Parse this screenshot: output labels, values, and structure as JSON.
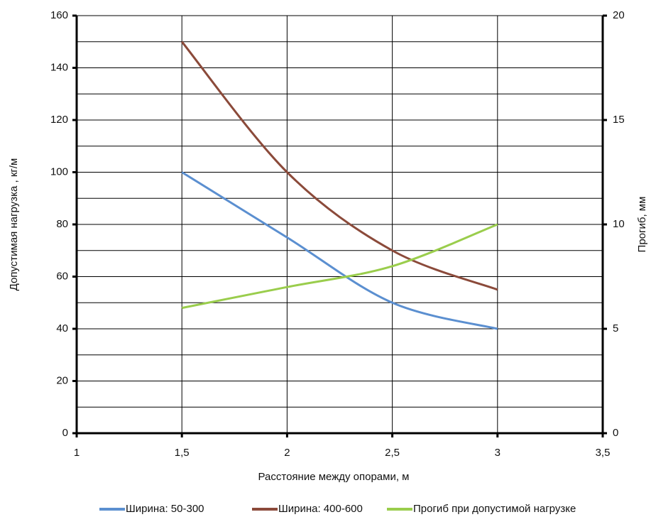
{
  "chart_data": {
    "type": "line",
    "x_label": "Расстояние между опорами, м",
    "y_label": "Допустимая нагрузка , кг/м",
    "y2_label": "Прогиб, мм",
    "x": [
      1.5,
      2,
      2.5,
      3
    ],
    "xlim": [
      1,
      3.5
    ],
    "xticks": [
      1,
      {
        "value": 1.5,
        "label": "1,5"
      },
      2,
      {
        "value": 2.5,
        "label": "2,5"
      },
      3,
      {
        "value": 3.5,
        "label": "3,5"
      }
    ],
    "ylim": [
      0,
      160
    ],
    "yticks": [
      0,
      20,
      40,
      60,
      80,
      100,
      120,
      140,
      160
    ],
    "y2lim": [
      0,
      20
    ],
    "y2ticks": [
      0,
      5,
      10,
      15,
      20
    ],
    "grid": true,
    "series": [
      {
        "name": "Ширина:  50-300",
        "color": "#5b8fd0",
        "values": [
          100,
          75,
          50,
          40
        ]
      },
      {
        "name": "Ширина:  400-600",
        "color": "#8b4a3a",
        "values": [
          150,
          100,
          70,
          55
        ]
      },
      {
        "name": "Прогиб при допустимой нагрузке",
        "color": "#9acd4c",
        "values": [
          6,
          7,
          8,
          10
        ],
        "axis": "y2"
      }
    ]
  }
}
